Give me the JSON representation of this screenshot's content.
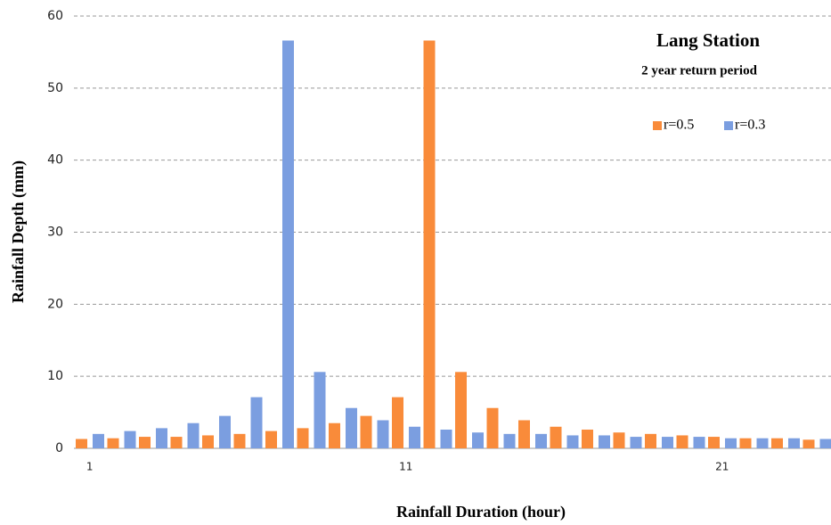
{
  "chart_data": {
    "type": "bar",
    "title": "Lang Station",
    "subtitle": "2 year return period",
    "x_label": "Rainfall Duration (hour)",
    "y_label": "Rainfall Depth (mm)",
    "categories": [
      "1",
      null,
      null,
      null,
      null,
      null,
      null,
      null,
      null,
      null,
      "11",
      null,
      null,
      null,
      null,
      null,
      null,
      null,
      null,
      null,
      "21",
      null,
      null,
      null
    ],
    "series": [
      {
        "name": "r=0.5",
        "color": "#f98b3a",
        "values": [
          1.3,
          1.4,
          1.6,
          1.6,
          1.8,
          2.0,
          2.4,
          2.8,
          3.5,
          4.5,
          7.1,
          56.6,
          10.6,
          5.6,
          3.9,
          3.0,
          2.6,
          2.2,
          2.0,
          1.8,
          1.6,
          1.4,
          1.4,
          1.2
        ]
      },
      {
        "name": "r=0.3",
        "color": "#7b9ee0",
        "values": [
          2.0,
          2.4,
          2.8,
          3.5,
          4.5,
          7.1,
          56.6,
          10.6,
          5.6,
          3.9,
          3.0,
          2.6,
          2.2,
          2.0,
          2.0,
          1.8,
          1.8,
          1.6,
          1.6,
          1.6,
          1.4,
          1.4,
          1.4,
          1.3
        ]
      }
    ],
    "ylim": [
      0,
      60
    ],
    "yticks": [
      0,
      10,
      20,
      30,
      40,
      50,
      60
    ],
    "grid": true,
    "legend": "upper right"
  }
}
